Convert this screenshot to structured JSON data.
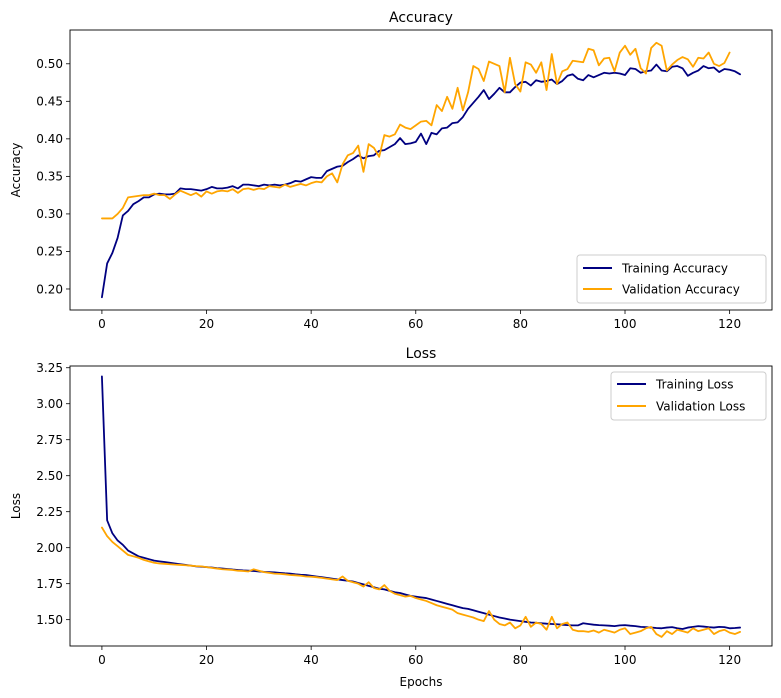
{
  "chart_data": [
    {
      "type": "line",
      "title": "Accuracy",
      "xlabel": "",
      "ylabel": "Accuracy",
      "xlim": [
        -6.1,
        128.1
      ],
      "ylim": [
        0.172,
        0.545
      ],
      "xticks": [
        0,
        20,
        40,
        60,
        80,
        100,
        120
      ],
      "yticks": [
        0.2,
        0.25,
        0.3,
        0.35,
        0.4,
        0.45,
        0.5
      ],
      "ytick_labels": [
        "0.20",
        "0.25",
        "0.30",
        "0.35",
        "0.40",
        "0.45",
        "0.50"
      ],
      "legend_position": "lower-right",
      "series": [
        {
          "name": "Training Accuracy",
          "color": "#000080",
          "values": [
            0.189,
            0.234,
            0.248,
            0.268,
            0.298,
            0.304,
            0.313,
            0.317,
            0.322,
            0.322,
            0.326,
            0.327,
            0.326,
            0.326,
            0.327,
            0.334,
            0.333,
            0.333,
            0.332,
            0.331,
            0.333,
            0.336,
            0.334,
            0.334,
            0.335,
            0.337,
            0.334,
            0.339,
            0.339,
            0.338,
            0.337,
            0.339,
            0.338,
            0.339,
            0.338,
            0.339,
            0.341,
            0.344,
            0.343,
            0.346,
            0.349,
            0.348,
            0.348,
            0.357,
            0.36,
            0.363,
            0.364,
            0.369,
            0.373,
            0.378,
            0.374,
            0.377,
            0.378,
            0.384,
            0.385,
            0.389,
            0.393,
            0.401,
            0.393,
            0.394,
            0.396,
            0.407,
            0.393,
            0.408,
            0.406,
            0.414,
            0.415,
            0.421,
            0.422,
            0.429,
            0.44,
            0.448,
            0.456,
            0.465,
            0.453,
            0.46,
            0.468,
            0.462,
            0.462,
            0.469,
            0.475,
            0.476,
            0.471,
            0.478,
            0.476,
            0.477,
            0.479,
            0.473,
            0.477,
            0.484,
            0.486,
            0.48,
            0.478,
            0.485,
            0.482,
            0.485,
            0.488,
            0.487,
            0.488,
            0.487,
            0.485,
            0.494,
            0.493,
            0.488,
            0.49,
            0.491,
            0.499,
            0.491,
            0.49,
            0.496,
            0.497,
            0.494,
            0.484,
            0.488,
            0.491,
            0.497,
            0.494,
            0.495,
            0.489,
            0.493,
            0.492,
            0.49,
            0.486
          ]
        },
        {
          "name": "Validation Accuracy",
          "color": "#FFA500",
          "values": [
            0.294,
            0.294,
            0.294,
            0.3,
            0.308,
            0.322,
            0.323,
            0.324,
            0.325,
            0.325,
            0.327,
            0.325,
            0.325,
            0.32,
            0.326,
            0.331,
            0.328,
            0.325,
            0.328,
            0.323,
            0.33,
            0.327,
            0.33,
            0.331,
            0.33,
            0.333,
            0.328,
            0.333,
            0.334,
            0.332,
            0.334,
            0.333,
            0.337,
            0.336,
            0.335,
            0.339,
            0.336,
            0.338,
            0.34,
            0.338,
            0.341,
            0.343,
            0.342,
            0.35,
            0.354,
            0.342,
            0.366,
            0.378,
            0.381,
            0.391,
            0.356,
            0.393,
            0.388,
            0.376,
            0.405,
            0.403,
            0.406,
            0.419,
            0.415,
            0.413,
            0.418,
            0.423,
            0.424,
            0.418,
            0.445,
            0.437,
            0.456,
            0.44,
            0.468,
            0.438,
            0.462,
            0.497,
            0.493,
            0.477,
            0.503,
            0.5,
            0.497,
            0.462,
            0.508,
            0.473,
            0.463,
            0.502,
            0.499,
            0.488,
            0.502,
            0.465,
            0.513,
            0.473,
            0.49,
            0.493,
            0.504,
            0.503,
            0.502,
            0.52,
            0.518,
            0.498,
            0.507,
            0.508,
            0.49,
            0.515,
            0.524,
            0.512,
            0.52,
            0.494,
            0.487,
            0.521,
            0.528,
            0.524,
            0.491,
            0.499,
            0.505,
            0.509,
            0.506,
            0.496,
            0.508,
            0.507,
            0.515,
            0.5,
            0.497,
            0.501,
            0.515
          ]
        }
      ]
    },
    {
      "type": "line",
      "title": "Loss",
      "xlabel": "Epochs",
      "ylabel": "Loss",
      "xlim": [
        -6.1,
        128.1
      ],
      "ylim": [
        1.317,
        3.262
      ],
      "xticks": [
        0,
        20,
        40,
        60,
        80,
        100,
        120
      ],
      "yticks": [
        1.5,
        1.75,
        2.0,
        2.25,
        2.5,
        2.75,
        3.0,
        3.25
      ],
      "ytick_labels": [
        "1.50",
        "1.75",
        "2.00",
        "2.25",
        "2.50",
        "2.75",
        "3.00",
        "3.25"
      ],
      "legend_position": "upper-right",
      "series": [
        {
          "name": "Training Loss",
          "color": "#000080",
          "values": [
            3.19,
            2.19,
            2.1,
            2.05,
            2.02,
            1.98,
            1.96,
            1.94,
            1.93,
            1.92,
            1.91,
            1.905,
            1.9,
            1.895,
            1.89,
            1.885,
            1.88,
            1.875,
            1.87,
            1.868,
            1.865,
            1.862,
            1.858,
            1.855,
            1.852,
            1.848,
            1.845,
            1.842,
            1.84,
            1.838,
            1.835,
            1.832,
            1.83,
            1.828,
            1.825,
            1.822,
            1.82,
            1.815,
            1.812,
            1.81,
            1.805,
            1.8,
            1.795,
            1.79,
            1.785,
            1.78,
            1.775,
            1.77,
            1.765,
            1.755,
            1.745,
            1.735,
            1.725,
            1.715,
            1.71,
            1.7,
            1.69,
            1.685,
            1.675,
            1.665,
            1.66,
            1.655,
            1.65,
            1.64,
            1.63,
            1.62,
            1.61,
            1.6,
            1.59,
            1.58,
            1.575,
            1.565,
            1.555,
            1.545,
            1.535,
            1.525,
            1.515,
            1.508,
            1.5,
            1.495,
            1.49,
            1.485,
            1.48,
            1.478,
            1.475,
            1.472,
            1.47,
            1.468,
            1.465,
            1.462,
            1.46,
            1.46,
            1.475,
            1.47,
            1.465,
            1.462,
            1.46,
            1.458,
            1.455,
            1.46,
            1.462,
            1.458,
            1.455,
            1.45,
            1.448,
            1.445,
            1.442,
            1.44,
            1.445,
            1.448,
            1.44,
            1.435,
            1.445,
            1.45,
            1.455,
            1.452,
            1.448,
            1.445,
            1.45,
            1.448,
            1.44,
            1.442,
            1.445
          ]
        },
        {
          "name": "Validation Loss",
          "color": "#FFA500",
          "values": [
            2.14,
            2.08,
            2.04,
            2.01,
            1.98,
            1.95,
            1.94,
            1.93,
            1.915,
            1.905,
            1.895,
            1.89,
            1.888,
            1.885,
            1.882,
            1.88,
            1.878,
            1.875,
            1.872,
            1.87,
            1.865,
            1.86,
            1.855,
            1.85,
            1.848,
            1.845,
            1.84,
            1.838,
            1.835,
            1.85,
            1.84,
            1.83,
            1.825,
            1.82,
            1.818,
            1.815,
            1.81,
            1.808,
            1.805,
            1.8,
            1.798,
            1.795,
            1.79,
            1.785,
            1.78,
            1.775,
            1.8,
            1.77,
            1.76,
            1.75,
            1.73,
            1.76,
            1.72,
            1.71,
            1.74,
            1.7,
            1.68,
            1.67,
            1.66,
            1.665,
            1.65,
            1.64,
            1.63,
            1.615,
            1.6,
            1.59,
            1.58,
            1.57,
            1.545,
            1.535,
            1.525,
            1.515,
            1.5,
            1.49,
            1.56,
            1.5,
            1.47,
            1.46,
            1.48,
            1.44,
            1.46,
            1.52,
            1.45,
            1.48,
            1.47,
            1.43,
            1.52,
            1.44,
            1.47,
            1.48,
            1.43,
            1.42,
            1.42,
            1.415,
            1.425,
            1.41,
            1.43,
            1.42,
            1.41,
            1.43,
            1.44,
            1.4,
            1.41,
            1.42,
            1.44,
            1.45,
            1.4,
            1.38,
            1.42,
            1.4,
            1.43,
            1.42,
            1.41,
            1.44,
            1.42,
            1.43,
            1.44,
            1.4,
            1.42,
            1.43,
            1.41,
            1.4,
            1.415
          ]
        }
      ]
    }
  ]
}
